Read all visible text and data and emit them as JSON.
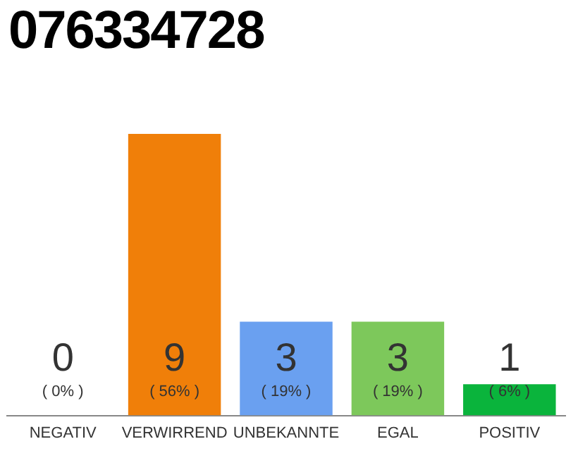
{
  "chart_data": {
    "type": "bar",
    "title": "076334728",
    "categories": [
      "NEGATIV",
      "VERWIRREND",
      "UNBEKANNTE",
      "EGAL",
      "POSITIV"
    ],
    "values": [
      0,
      9,
      3,
      3,
      1
    ],
    "colors": [
      "#9e9e9e",
      "#f07f09",
      "#6aa0f0",
      "#7dc85b",
      "#0ab43c"
    ],
    "value_labels": [
      "0",
      "9",
      "3",
      "3",
      "1"
    ],
    "annotations": [
      "( 0% )",
      "( 56% )",
      "( 19% )",
      "( 19% )",
      "( 6% )"
    ],
    "grid": false,
    "legend": false
  }
}
